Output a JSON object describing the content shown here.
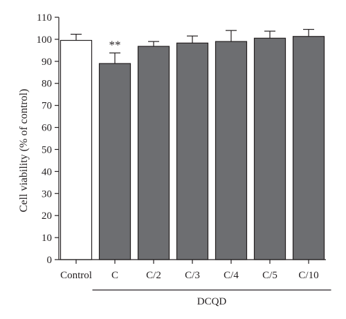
{
  "chart_data": {
    "type": "bar",
    "categories": [
      "Control",
      "C",
      "C/2",
      "C/3",
      "C/4",
      "C/5",
      "C/10"
    ],
    "values": [
      99.5,
      89,
      96.8,
      98.3,
      99,
      100.5,
      101.3
    ],
    "errors": [
      2.8,
      4.8,
      2.2,
      3.2,
      5,
      3.2,
      3.2
    ],
    "bar_colors": [
      "#ffffff",
      "#6d6e71",
      "#6d6e71",
      "#6d6e71",
      "#6d6e71",
      "#6d6e71",
      "#6d6e71"
    ],
    "ylabel": "Cell viability (% of control)",
    "xlabel": "",
    "ylim": [
      0,
      110
    ],
    "yticks": [
      0,
      10,
      20,
      30,
      40,
      50,
      60,
      70,
      80,
      90,
      100,
      110
    ],
    "grid": false,
    "group_label": {
      "text": "DCQD",
      "from_category": "C",
      "to_category": "C/10"
    },
    "annotations": [
      {
        "category": "C",
        "text": "**"
      }
    ]
  }
}
